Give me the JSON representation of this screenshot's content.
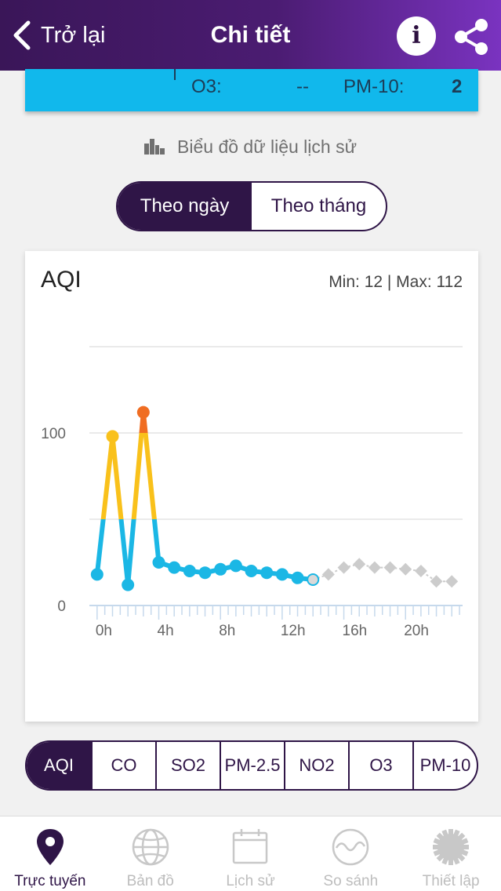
{
  "header": {
    "back_label": "Trở lại",
    "title": "Chi tiết",
    "info_glyph": "i"
  },
  "aq_strip": {
    "o3_label": "O3:",
    "o3_value": "--",
    "pm10_label": "PM-10:",
    "pm10_value": "2"
  },
  "history_label": "Biểu đồ dữ liệu lịch sử",
  "period_tabs": [
    {
      "label": "Theo ngày",
      "active": true
    },
    {
      "label": "Theo tháng",
      "active": false
    }
  ],
  "chart_card": {
    "title": "AQI",
    "minmax": "Min: 12 | Max: 112"
  },
  "chart_data": {
    "type": "line",
    "title": "AQI",
    "y_tick_labels": [
      "0",
      "100"
    ],
    "x_tick_labels": [
      "0h",
      "4h",
      "8h",
      "12h",
      "16h",
      "20h"
    ],
    "ylim": [
      0,
      150
    ],
    "xlim": [
      -0.5,
      23.7
    ],
    "grid": true,
    "thresholds": [
      50,
      100
    ],
    "colors": {
      "good": "#1bb7e5",
      "moderate": "#f9c11b",
      "unhealthy": "#f06d22",
      "forecast": "#cccccc"
    },
    "series": [
      {
        "x": [
          0,
          1,
          2,
          3,
          4,
          5,
          6,
          7,
          8,
          9,
          10,
          11,
          12,
          13,
          14
        ],
        "values": [
          18,
          98,
          12,
          112,
          25,
          22,
          20,
          19,
          21,
          23,
          20,
          19,
          18,
          16,
          15
        ]
      },
      {
        "x": [
          14,
          15,
          16,
          17,
          18,
          19,
          20,
          21,
          22,
          23
        ],
        "values": [
          15,
          18,
          22,
          24,
          22,
          22,
          21,
          20,
          14,
          14
        ]
      }
    ]
  },
  "metric_tabs": [
    {
      "label": "AQI",
      "active": true
    },
    {
      "label": "CO",
      "active": false
    },
    {
      "label": "SO2",
      "active": false
    },
    {
      "label": "PM-2.5",
      "active": false
    },
    {
      "label": "NO2",
      "active": false
    },
    {
      "label": "O3",
      "active": false
    },
    {
      "label": "PM-10",
      "active": false
    }
  ],
  "bottom_tabs": [
    {
      "label": "Trực tuyến",
      "icon": "location-pin-icon",
      "active": true
    },
    {
      "label": "Bản đồ",
      "icon": "globe-icon",
      "active": false
    },
    {
      "label": "Lịch sử",
      "icon": "calendar-icon",
      "active": false
    },
    {
      "label": "So sánh",
      "icon": "compare-wave-icon",
      "active": false
    },
    {
      "label": "Thiết lập",
      "icon": "gear-icon",
      "active": false
    }
  ]
}
